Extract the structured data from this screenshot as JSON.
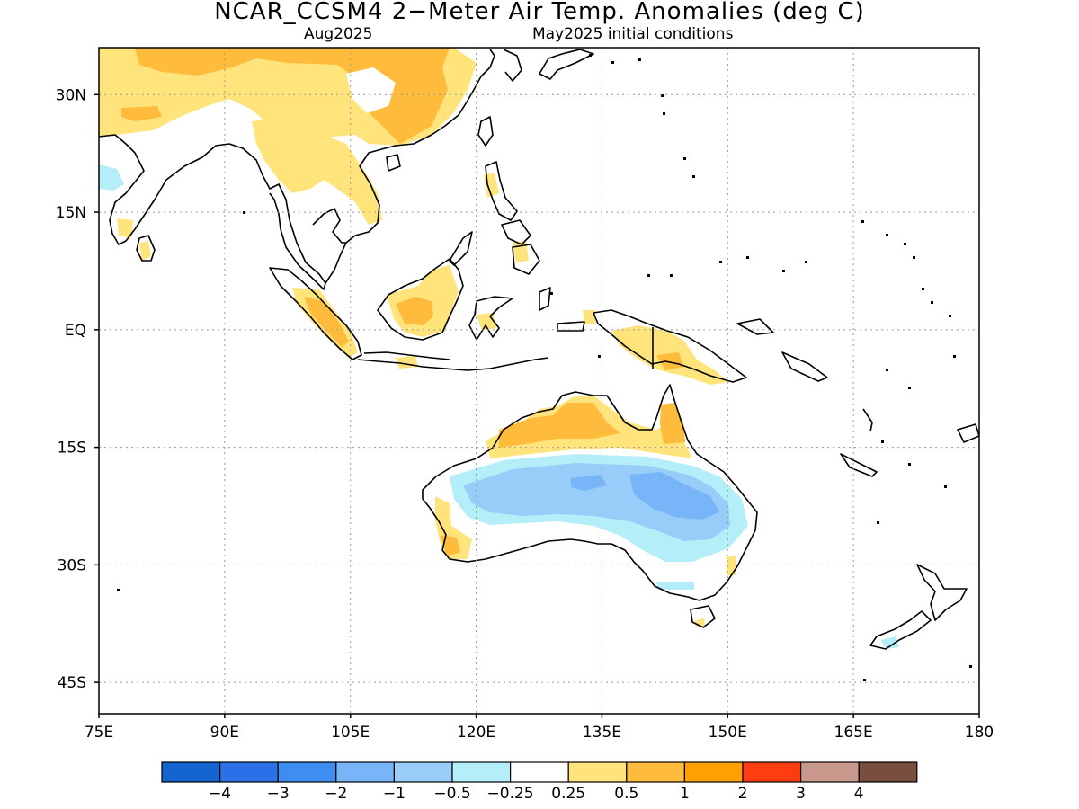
{
  "title": "NCAR_CCSM4 2−Meter Air Temp. Anomalies (deg C)",
  "subtitle_left": "Aug2025",
  "subtitle_right": "May2025 initial conditions",
  "map": {
    "lon_range": [
      75,
      180
    ],
    "lat_range": [
      -49,
      36
    ],
    "lon_ticks": [
      {
        "value": 75,
        "label": "75E"
      },
      {
        "value": 90,
        "label": "90E"
      },
      {
        "value": 105,
        "label": "105E"
      },
      {
        "value": 120,
        "label": "120E"
      },
      {
        "value": 135,
        "label": "135E"
      },
      {
        "value": 150,
        "label": "150E"
      },
      {
        "value": 165,
        "label": "165E"
      },
      {
        "value": 180,
        "label": "180"
      }
    ],
    "lat_ticks": [
      {
        "value": 30,
        "label": "30N"
      },
      {
        "value": 15,
        "label": "15N"
      },
      {
        "value": 0,
        "label": "EQ"
      },
      {
        "value": -15,
        "label": "15S"
      },
      {
        "value": -30,
        "label": "30S"
      },
      {
        "value": -45,
        "label": "45S"
      }
    ],
    "grid": "dotted"
  },
  "colorbar": {
    "colors": [
      "#1565d0",
      "#2a70e6",
      "#3e8ef0",
      "#77b5f8",
      "#97cdf8",
      "#b4eef8",
      "#ffffff",
      "#ffe47c",
      "#ffbc3c",
      "#ff9f00",
      "#ff3b10",
      "#c8998c",
      "#7a4e3e"
    ],
    "labels": [
      "−4",
      "−3",
      "−2",
      "−1",
      "−0.5",
      "−0.25",
      "0.25",
      "0.5",
      "1",
      "2",
      "3",
      "4"
    ]
  },
  "anomaly_regions": [
    {
      "name": "Australia interior cool",
      "level": "-0.25",
      "color": "#b4eef8"
    },
    {
      "name": "Australia central cool",
      "level": "-0.5",
      "color": "#97cdf8"
    },
    {
      "name": "Australia east-central cool",
      "level": "-1",
      "color": "#77b5f8"
    },
    {
      "name": "Southern China warm",
      "level": "0.5",
      "color": "#ffe47c"
    },
    {
      "name": "Northern Australia warm",
      "level": "1",
      "color": "#ffbc3c"
    },
    {
      "name": "Cape York warm",
      "level": "1",
      "color": "#ffbc3c"
    },
    {
      "name": "Western Australia warm",
      "level": "0.5",
      "color": "#ffe47c"
    },
    {
      "name": "Sumatra warm",
      "level": "1",
      "color": "#ffbc3c"
    },
    {
      "name": "Borneo warm",
      "level": "1",
      "color": "#ffbc3c"
    },
    {
      "name": "New Guinea warm",
      "level": "0.5",
      "color": "#ffe47c"
    },
    {
      "name": "Indochina warm",
      "level": "0.5",
      "color": "#ffe47c"
    },
    {
      "name": "India warm",
      "level": "0.5",
      "color": "#ffe47c"
    }
  ]
}
